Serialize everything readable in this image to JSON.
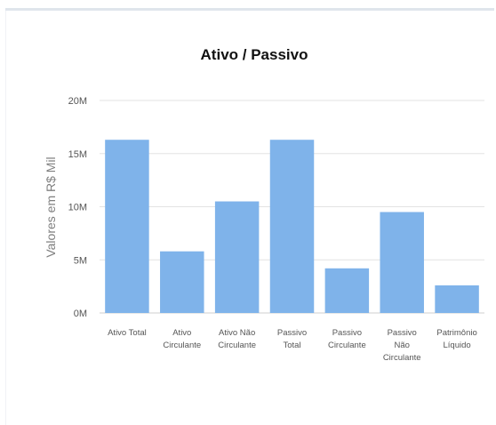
{
  "chart_data": {
    "type": "bar",
    "title": "Ativo / Passivo",
    "ylabel": "Valores em R$ Mil",
    "xlabel": "",
    "ylim": [
      0,
      20000000
    ],
    "yticks": [
      {
        "value": 0,
        "label": "0M"
      },
      {
        "value": 5000000,
        "label": "5M"
      },
      {
        "value": 10000000,
        "label": "10M"
      },
      {
        "value": 15000000,
        "label": "15M"
      },
      {
        "value": 20000000,
        "label": "20M"
      }
    ],
    "categories": [
      [
        "Ativo Total"
      ],
      [
        "Ativo",
        "Circulante"
      ],
      [
        "Ativo Não",
        "Circulante"
      ],
      [
        "Passivo",
        "Total"
      ],
      [
        "Passivo",
        "Circulante"
      ],
      [
        "Passivo",
        "Não",
        "Circulante"
      ],
      [
        "Patrimônio",
        "Líquido"
      ]
    ],
    "values": [
      16300000,
      5800000,
      10500000,
      16300000,
      4200000,
      9500000,
      2600000
    ],
    "grid": true,
    "legend": "none",
    "bar_color": "#7fb3ea"
  }
}
